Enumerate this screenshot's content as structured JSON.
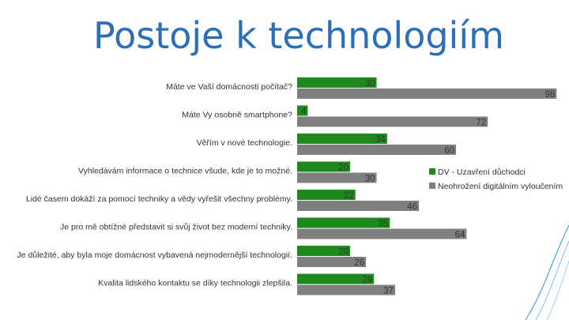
{
  "title": "Postoje k technologiím",
  "colors": {
    "title": "#2b6fb8",
    "series_green": "#1e8a1e",
    "series_gray": "#7f7f7f",
    "decor": "#4aa3df"
  },
  "chart_data": {
    "type": "bar",
    "orientation": "horizontal",
    "title": "",
    "xlabel": "",
    "ylabel": "",
    "xlim": [
      0,
      100
    ],
    "grid": false,
    "legend_position": "right",
    "categories": [
      "Máte ve Vaší domácnosti počítač?",
      "Máte Vy osobně smartphone?",
      "Věřím v nové technologie.",
      "Vyhledávám informace o technice všude, kde je to možné.",
      "Lidé časem dokáží za pomocí techniky a vědy vyřešit všechny problémy.",
      "Je pro mě obtížné představit si svůj život bez moderní techniky.",
      "Je důležité, aby byla moje domácnost vybavená nejmodernější technologií.",
      "Kvalita lidského kontaktu se díky technologii zlepšila."
    ],
    "series": [
      {
        "name": "DV - Uzavření důchodci",
        "color": "#1e8a1e",
        "values": [
          30,
          4,
          34,
          20,
          22,
          35,
          20,
          29
        ]
      },
      {
        "name": "Neohrožení digitálním vyloučením",
        "color": "#7f7f7f",
        "values": [
          98,
          72,
          60,
          30,
          46,
          64,
          26,
          37
        ]
      }
    ]
  }
}
